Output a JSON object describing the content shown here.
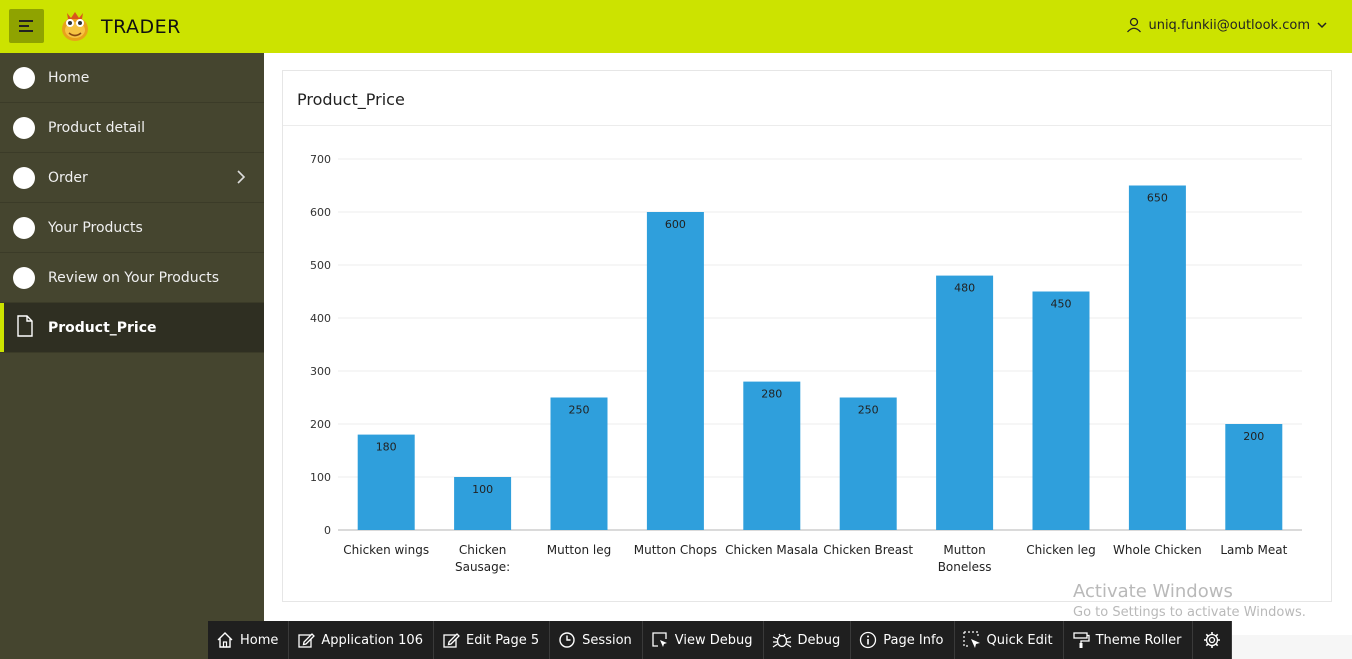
{
  "header": {
    "app_title": "TRADER",
    "user_email": "uniq.funkii@outlook.com",
    "brand_color": "#cce300"
  },
  "sidebar": {
    "items": [
      {
        "label": "Home"
      },
      {
        "label": "Product detail"
      },
      {
        "label": "Order"
      },
      {
        "label": "Your Products"
      },
      {
        "label": "Review on Your Products"
      },
      {
        "label": "Product_Price"
      }
    ],
    "active_index": 5
  },
  "card": {
    "title": "Product_Price"
  },
  "chart_data": {
    "type": "bar",
    "title": "",
    "xlabel": "",
    "ylabel": "",
    "categories": [
      "Chicken wings",
      "Chicken Sausage:",
      "Mutton leg",
      "Mutton Chops",
      "Chicken Masala",
      "Chicken Breast",
      "Mutton Boneless",
      "Chicken leg",
      "Whole Chicken",
      "Lamb Meat"
    ],
    "values": [
      180,
      100,
      250,
      600,
      280,
      250,
      480,
      450,
      650,
      200
    ],
    "ylim": [
      0,
      700
    ],
    "yticks": [
      0,
      100,
      200,
      300,
      400,
      500,
      600,
      700
    ],
    "grid": true,
    "bar_color": "#2f9fdc"
  },
  "toolbar": {
    "items": [
      {
        "label": "Home",
        "icon": "home-icon"
      },
      {
        "label": "Application 106",
        "icon": "edit-icon"
      },
      {
        "label": "Edit Page 5",
        "icon": "edit-icon"
      },
      {
        "label": "Session",
        "icon": "clock-icon"
      },
      {
        "label": "View Debug",
        "icon": "window-pointer-icon"
      },
      {
        "label": "Debug",
        "icon": "bug-icon"
      },
      {
        "label": "Page Info",
        "icon": "info-icon"
      },
      {
        "label": "Quick Edit",
        "icon": "cursor-select-icon"
      },
      {
        "label": "Theme Roller",
        "icon": "paint-roller-icon"
      },
      {
        "label": "",
        "icon": "gear-icon"
      }
    ]
  },
  "watermark": {
    "line1": "Activate Windows",
    "line2": "Go to Settings to activate Windows."
  }
}
